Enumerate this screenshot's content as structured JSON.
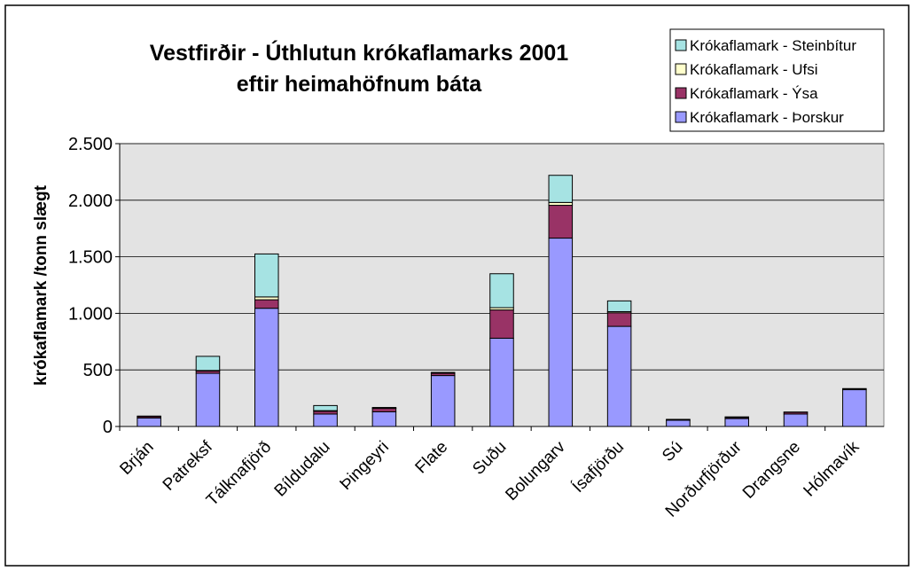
{
  "chart_data": {
    "type": "stacked_bar",
    "title": [
      "Vestfirðir - Úthlutun krókaflamarks 2001",
      "eftir heimahöfnum báta"
    ],
    "y_label": "krókaflamark /tonn slægt",
    "categories": [
      "Brján",
      "Patreksf",
      "Tálknafjörð",
      "Bíldudalu",
      "Þingeyri",
      "Flate",
      "Suðu",
      "Bolungarv",
      "Ísafjörðu",
      "Sú",
      "Norðurfjörður",
      "Drangsne",
      "Hólmavík"
    ],
    "series": [
      {
        "name": "Krókaflamark - Þorskur",
        "color": "#9999ff",
        "values": [
          75,
          470,
          1045,
          110,
          130,
          450,
          780,
          1665,
          885,
          55,
          70,
          110,
          325
        ]
      },
      {
        "name": "Krókaflamark - Ýsa",
        "color": "#993366",
        "values": [
          12,
          20,
          75,
          25,
          30,
          20,
          250,
          290,
          120,
          5,
          10,
          15,
          5
        ]
      },
      {
        "name": "Krókaflamark - Ufsi",
        "color": "#ffffcc",
        "values": [
          0,
          5,
          25,
          5,
          3,
          3,
          20,
          25,
          10,
          0,
          0,
          0,
          0
        ]
      },
      {
        "name": "Krókaflamark - Steinbítur",
        "color": "#a6e3e3",
        "values": [
          5,
          125,
          380,
          45,
          5,
          5,
          300,
          240,
          95,
          3,
          5,
          3,
          5
        ]
      }
    ],
    "ylim": [
      0,
      2500
    ],
    "yticks": [
      0,
      500,
      {
        "value": 1000,
        "label": "1.000"
      },
      {
        "value": 1500,
        "label": "1.500"
      },
      {
        "value": 2000,
        "label": "2.000"
      },
      {
        "value": 2500,
        "label": "2.500"
      }
    ],
    "grid": true,
    "legend": "top-right"
  }
}
